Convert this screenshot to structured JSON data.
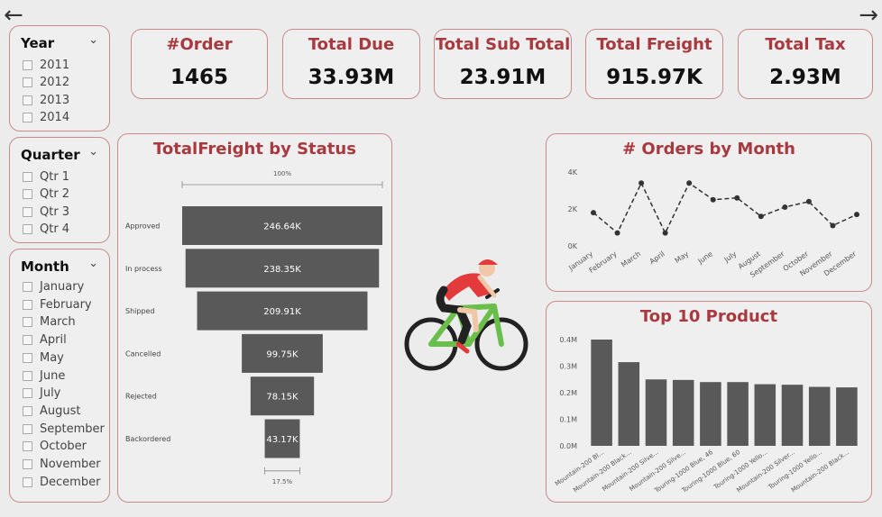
{
  "nav": {
    "back_icon": "arrow-left-icon",
    "forward_icon": "arrow-right-icon"
  },
  "slicers": {
    "year": {
      "title": "Year",
      "items": [
        "2011",
        "2012",
        "2013",
        "2014"
      ]
    },
    "quarter": {
      "title": "Quarter",
      "items": [
        "Qtr 1",
        "Qtr 2",
        "Qtr 3",
        "Qtr 4"
      ]
    },
    "month": {
      "title": "Month",
      "items": [
        "January",
        "February",
        "March",
        "April",
        "May",
        "June",
        "July",
        "August",
        "September",
        "October",
        "November",
        "December"
      ]
    }
  },
  "kpis": [
    {
      "title": "#Order",
      "value": "1465"
    },
    {
      "title": "Total Due",
      "value": "33.93M"
    },
    {
      "title": "Total Sub Total",
      "value": "23.91M"
    },
    {
      "title": "Total Freight",
      "value": "915.97K"
    },
    {
      "title": "Total Tax",
      "value": "2.93M"
    }
  ],
  "colors": {
    "accent": "#a8393f",
    "border": "#c98a8a",
    "bar": "#595959",
    "bike_red": "#e33b3b",
    "bike_green": "#6abf4b"
  },
  "illustration": {
    "icon": "cyclist-icon"
  },
  "chart_data": [
    {
      "type": "bar",
      "subtype": "funnel",
      "title": "TotalFreight by Status",
      "top_label": "100%",
      "bottom_label": "17.5%",
      "categories": [
        "Approved",
        "In process",
        "Shipped",
        "Cancelled",
        "Rejected",
        "Backordered"
      ],
      "values": [
        246.64,
        238.35,
        209.91,
        99.75,
        78.15,
        43.17
      ],
      "value_labels": [
        "246.64K",
        "238.35K",
        "209.91K",
        "99.75K",
        "78.15K",
        "43.17K"
      ]
    },
    {
      "type": "line",
      "title": "# Orders by Month",
      "categories": [
        "January",
        "February",
        "March",
        "April",
        "May",
        "June",
        "July",
        "August",
        "September",
        "October",
        "November",
        "December"
      ],
      "values": [
        1800,
        700,
        3400,
        700,
        3400,
        2500,
        2600,
        1600,
        2100,
        2400,
        1100,
        1700
      ],
      "yticks": [
        "0K",
        "2K",
        "4K"
      ],
      "ylim": [
        0,
        4000
      ]
    },
    {
      "type": "bar",
      "title": "Top 10 Product",
      "categories": [
        "Mountain-200 Bl...",
        "Mountain-200 Black...",
        "Mountain-200 Silve...",
        "Mountain-200 Silve...",
        "Touring-1000 Blue, 46",
        "Touring-1000 Blue, 60",
        "Touring-1000 Yello...",
        "Mountain-200 Silver...",
        "Touring-1000 Yello...",
        "Mountain-200 Black..."
      ],
      "values": [
        0.4,
        0.315,
        0.25,
        0.248,
        0.24,
        0.24,
        0.232,
        0.23,
        0.222,
        0.22
      ],
      "yticks": [
        "0.0M",
        "0.1M",
        "0.2M",
        "0.3M",
        "0.4M"
      ],
      "ylim": [
        0,
        0.4
      ]
    }
  ]
}
